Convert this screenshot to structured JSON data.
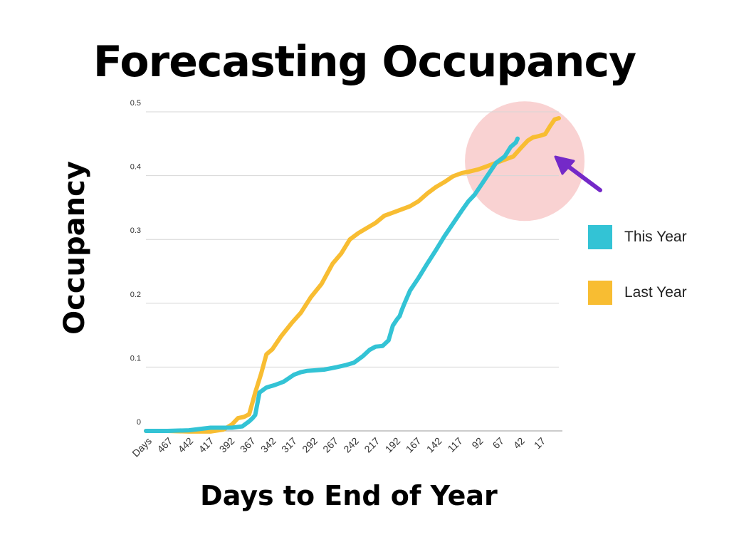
{
  "chart_data": {
    "type": "line",
    "title": "Forecasting Occupancy",
    "xlabel": "Days to End of Year",
    "ylabel": "Occupancy",
    "ylim": [
      0,
      0.5
    ],
    "y_ticks": [
      "0",
      "0.1",
      "0.2",
      "0.3",
      "0.4",
      "0.5"
    ],
    "y_tick_values": [
      0,
      0.1,
      0.2,
      0.3,
      0.4,
      0.5
    ],
    "x_ticks": [
      "Days",
      "467",
      "442",
      "417",
      "392",
      "367",
      "342",
      "317",
      "292",
      "267",
      "242",
      "217",
      "192",
      "167",
      "142",
      "117",
      "92",
      "67",
      "42",
      "17"
    ],
    "x_axis_direction": "decreasing",
    "grid": true,
    "legend_position": "right",
    "series": [
      {
        "name": "This Year",
        "color": "#33C3D5",
        "x": [
          492,
          467,
          442,
          417,
          392,
          380,
          372,
          368,
          365,
          360,
          352,
          342,
          332,
          320,
          312,
          305,
          295,
          285,
          270,
          260,
          250,
          240,
          232,
          225,
          217,
          210,
          205,
          200,
          197,
          195,
          192,
          185,
          175,
          165,
          155,
          145,
          135,
          125,
          117,
          110,
          100,
          95,
          90,
          85,
          75,
          68,
          62,
          60
        ],
        "y": [
          0,
          0,
          0.001,
          0.005,
          0.005,
          0.007,
          0.015,
          0.02,
          0.025,
          0.06,
          0.068,
          0.072,
          0.077,
          0.088,
          0.092,
          0.094,
          0.095,
          0.096,
          0.1,
          0.103,
          0.107,
          0.117,
          0.127,
          0.132,
          0.133,
          0.142,
          0.165,
          0.175,
          0.18,
          0.188,
          0.198,
          0.22,
          0.24,
          0.262,
          0.283,
          0.305,
          0.325,
          0.345,
          0.36,
          0.37,
          0.39,
          0.4,
          0.41,
          0.42,
          0.43,
          0.445,
          0.452,
          0.458
        ]
      },
      {
        "name": "Last Year",
        "color": "#F8BD32",
        "x": [
          492,
          467,
          442,
          417,
          402,
          392,
          385,
          378,
          372,
          365,
          358,
          352,
          345,
          335,
          322,
          312,
          300,
          288,
          275,
          265,
          255,
          245,
          235,
          225,
          215,
          205,
          195,
          185,
          175,
          165,
          155,
          145,
          135,
          125,
          117,
          105,
          95,
          85,
          75,
          65,
          55,
          48,
          42,
          35,
          28,
          22,
          17,
          12
        ],
        "y": [
          0,
          0,
          -0.001,
          -0.001,
          0.002,
          0.01,
          0.02,
          0.022,
          0.026,
          0.06,
          0.09,
          0.12,
          0.128,
          0.148,
          0.17,
          0.185,
          0.21,
          0.23,
          0.262,
          0.278,
          0.3,
          0.31,
          0.318,
          0.326,
          0.337,
          0.342,
          0.347,
          0.352,
          0.36,
          0.372,
          0.382,
          0.39,
          0.399,
          0.404,
          0.406,
          0.41,
          0.415,
          0.42,
          0.425,
          0.43,
          0.445,
          0.455,
          0.46,
          0.462,
          0.465,
          0.478,
          0.488,
          0.49
        ]
      }
    ],
    "annotation": {
      "highlight_color": "#F9D2D2",
      "highlight_center": {
        "x": 50,
        "y": 0.425
      },
      "arrow_color": "#7429C8"
    }
  }
}
